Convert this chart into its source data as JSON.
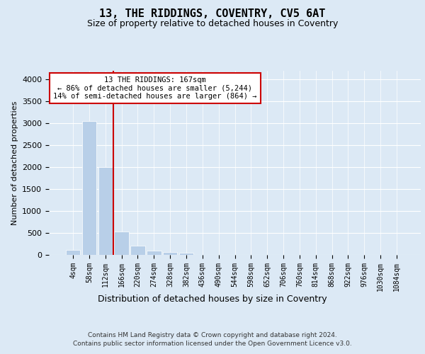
{
  "title": "13, THE RIDDINGS, COVENTRY, CV5 6AT",
  "subtitle": "Size of property relative to detached houses in Coventry",
  "xlabel": "Distribution of detached houses by size in Coventry",
  "ylabel": "Number of detached properties",
  "bar_color": "#b8cfe8",
  "background_color": "#dce9f5",
  "fig_color": "#dce9f5",
  "grid_color": "#ffffff",
  "vline_color": "#cc0000",
  "vline_pos": 2.5,
  "annotation_text": "13 THE RIDDINGS: 167sqm\n← 86% of detached houses are smaller (5,244)\n14% of semi-detached houses are larger (864) →",
  "footer_line1": "Contains HM Land Registry data © Crown copyright and database right 2024.",
  "footer_line2": "Contains public sector information licensed under the Open Government Licence v3.0.",
  "ylim": [
    0,
    4200
  ],
  "yticks": [
    0,
    500,
    1000,
    1500,
    2000,
    2500,
    3000,
    3500,
    4000
  ],
  "bin_labels": [
    "4sqm",
    "58sqm",
    "112sqm",
    "166sqm",
    "220sqm",
    "274sqm",
    "328sqm",
    "382sqm",
    "436sqm",
    "490sqm",
    "544sqm",
    "598sqm",
    "652sqm",
    "706sqm",
    "760sqm",
    "814sqm",
    "868sqm",
    "922sqm",
    "976sqm",
    "1030sqm",
    "1084sqm"
  ],
  "bar_heights": [
    120,
    3050,
    2000,
    540,
    215,
    95,
    60,
    50,
    0,
    0,
    0,
    0,
    0,
    0,
    0,
    0,
    0,
    0,
    0,
    0,
    0
  ],
  "title_fontsize": 11,
  "subtitle_fontsize": 9,
  "ylabel_fontsize": 8,
  "xlabel_fontsize": 9,
  "tick_fontsize": 8,
  "xtick_fontsize": 7,
  "footer_fontsize": 6.5,
  "ann_fontsize": 7.5
}
